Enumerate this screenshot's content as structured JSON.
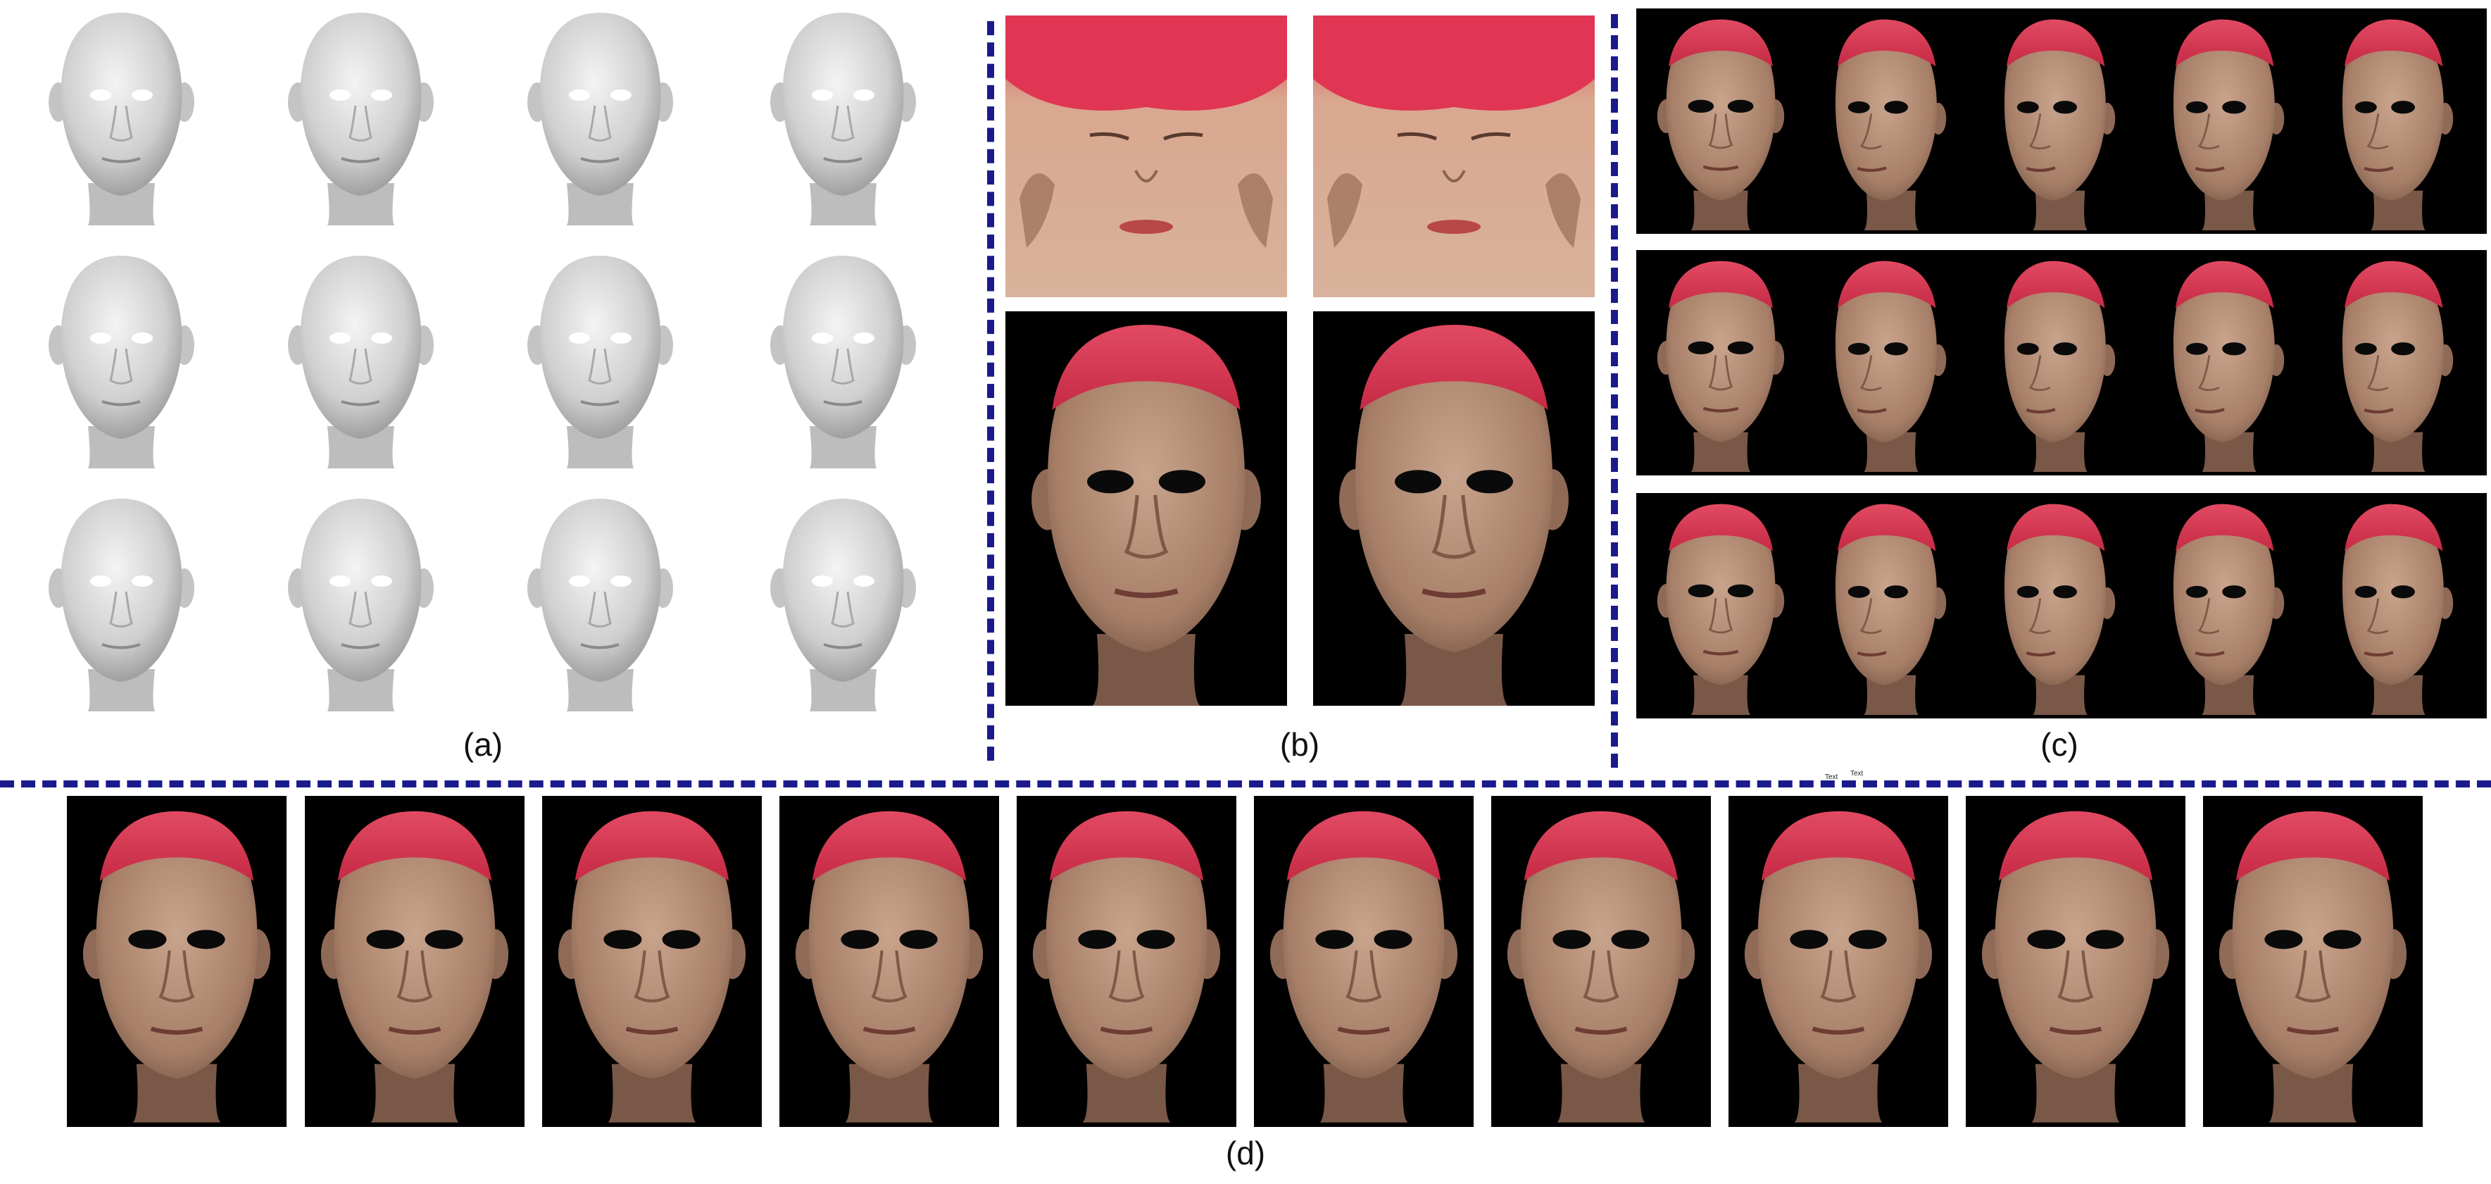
{
  "figure": {
    "captions": {
      "a": "(a)",
      "b": "(b)",
      "c": "(c)",
      "d": "(d)"
    },
    "stray_labels": [
      "Text",
      "Text"
    ],
    "colors": {
      "separator": "#1a1a8c",
      "cap": "#d8344f",
      "skin": "#b08a74",
      "mesh": "#d9d9d9",
      "background": "#000000"
    }
  }
}
